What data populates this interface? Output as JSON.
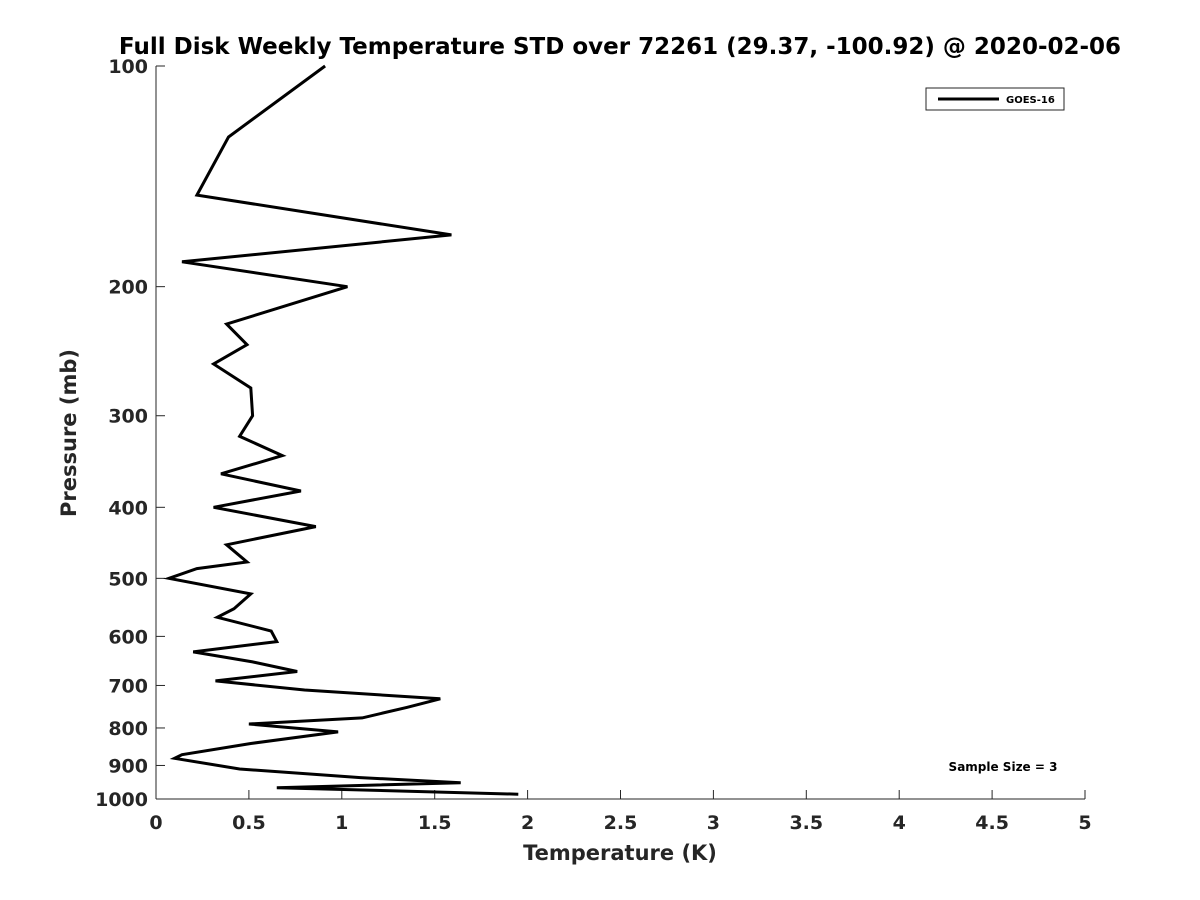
{
  "chart_data": {
    "type": "line",
    "title": "Full Disk Weekly Temperature STD over 72261 (29.37, -100.92) @ 2020-02-06",
    "xlabel": "Temperature (K)",
    "ylabel": "Pressure (mb)",
    "xlim": [
      0,
      5
    ],
    "ylim": [
      100,
      1000
    ],
    "yscale": "log",
    "y_reversed": true,
    "x_ticks": [
      "0",
      "0.5",
      "1",
      "1.5",
      "2",
      "2.5",
      "3",
      "3.5",
      "4",
      "4.5",
      "5"
    ],
    "y_ticks": [
      "100",
      "200",
      "300",
      "400",
      "500",
      "600",
      "700",
      "800",
      "900",
      "1000"
    ],
    "grid": false,
    "legend": {
      "position": "top-right",
      "entries": [
        "GOES-16"
      ]
    },
    "annotation": "Sample Size = 3",
    "series": [
      {
        "name": "GOES-16",
        "color": "#000000",
        "points": [
          [
            0.91,
            100
          ],
          [
            0.39,
            125
          ],
          [
            0.22,
            150
          ],
          [
            1.59,
            170
          ],
          [
            0.14,
            185
          ],
          [
            1.03,
            200
          ],
          [
            0.38,
            225
          ],
          [
            0.49,
            240
          ],
          [
            0.31,
            255
          ],
          [
            0.51,
            275
          ],
          [
            0.52,
            300
          ],
          [
            0.45,
            320
          ],
          [
            0.68,
            340
          ],
          [
            0.35,
            360
          ],
          [
            0.78,
            380
          ],
          [
            0.31,
            400
          ],
          [
            0.86,
            425
          ],
          [
            0.38,
            450
          ],
          [
            0.49,
            475
          ],
          [
            0.22,
            485
          ],
          [
            0.07,
            500
          ],
          [
            0.51,
            525
          ],
          [
            0.42,
            550
          ],
          [
            0.33,
            565
          ],
          [
            0.62,
            590
          ],
          [
            0.65,
            610
          ],
          [
            0.2,
            630
          ],
          [
            0.52,
            650
          ],
          [
            0.76,
            670
          ],
          [
            0.32,
            690
          ],
          [
            0.8,
            710
          ],
          [
            1.53,
            730
          ],
          [
            1.35,
            750
          ],
          [
            1.11,
            775
          ],
          [
            0.5,
            790
          ],
          [
            0.98,
            810
          ],
          [
            0.51,
            840
          ],
          [
            0.14,
            870
          ],
          [
            0.1,
            880
          ],
          [
            0.45,
            910
          ],
          [
            1.1,
            935
          ],
          [
            1.64,
            950
          ],
          [
            0.65,
            965
          ],
          [
            1.95,
            985
          ]
        ]
      }
    ]
  }
}
